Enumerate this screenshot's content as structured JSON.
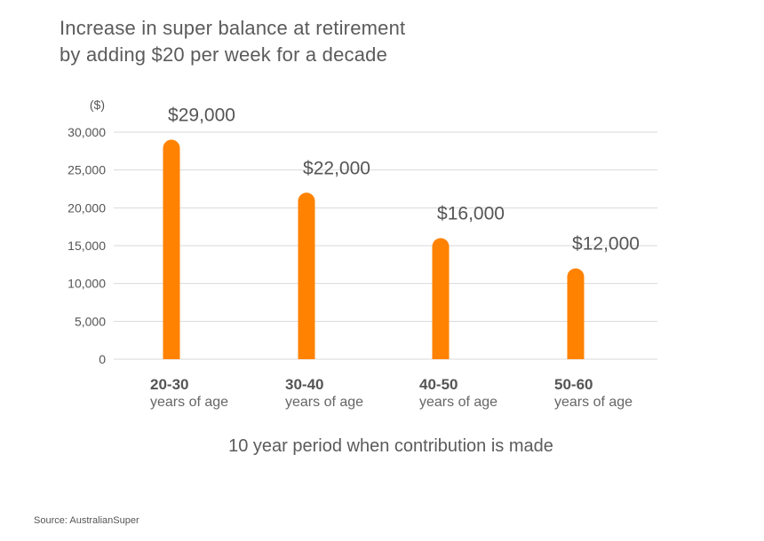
{
  "title_lines": [
    "Increase in super balance at retirement",
    "by adding $20 per week for a decade"
  ],
  "source": "Source: AustralianSuper",
  "colors": {
    "bar": "#ff8200",
    "grid": "#d9d9d9",
    "text": "#555555"
  },
  "chart_data": {
    "type": "bar",
    "title": "Increase in super balance at retirement by adding $20 per week for a decade",
    "xlabel": "10 year period when contribution is made",
    "ylabel": "($)",
    "categories": [
      {
        "line1": "20-30",
        "line2": "years of age"
      },
      {
        "line1": "30-40",
        "line2": "years of age"
      },
      {
        "line1": "40-50",
        "line2": "years of age"
      },
      {
        "line1": "50-60",
        "line2": "years of age"
      }
    ],
    "values": [
      29000,
      22000,
      16000,
      12000
    ],
    "data_labels": [
      "$29,000",
      "$22,000",
      "$16,000",
      "$12,000"
    ],
    "yticks": [
      {
        "value": 0,
        "label": "0"
      },
      {
        "value": 5000,
        "label": "5,000"
      },
      {
        "value": 10000,
        "label": "10,000"
      },
      {
        "value": 15000,
        "label": "15,000"
      },
      {
        "value": 20000,
        "label": "20,000"
      },
      {
        "value": 25000,
        "label": "25,000"
      },
      {
        "value": 30000,
        "label": "30,000"
      }
    ],
    "ylim": [
      0,
      30000
    ],
    "grid": true,
    "legend": "none"
  }
}
